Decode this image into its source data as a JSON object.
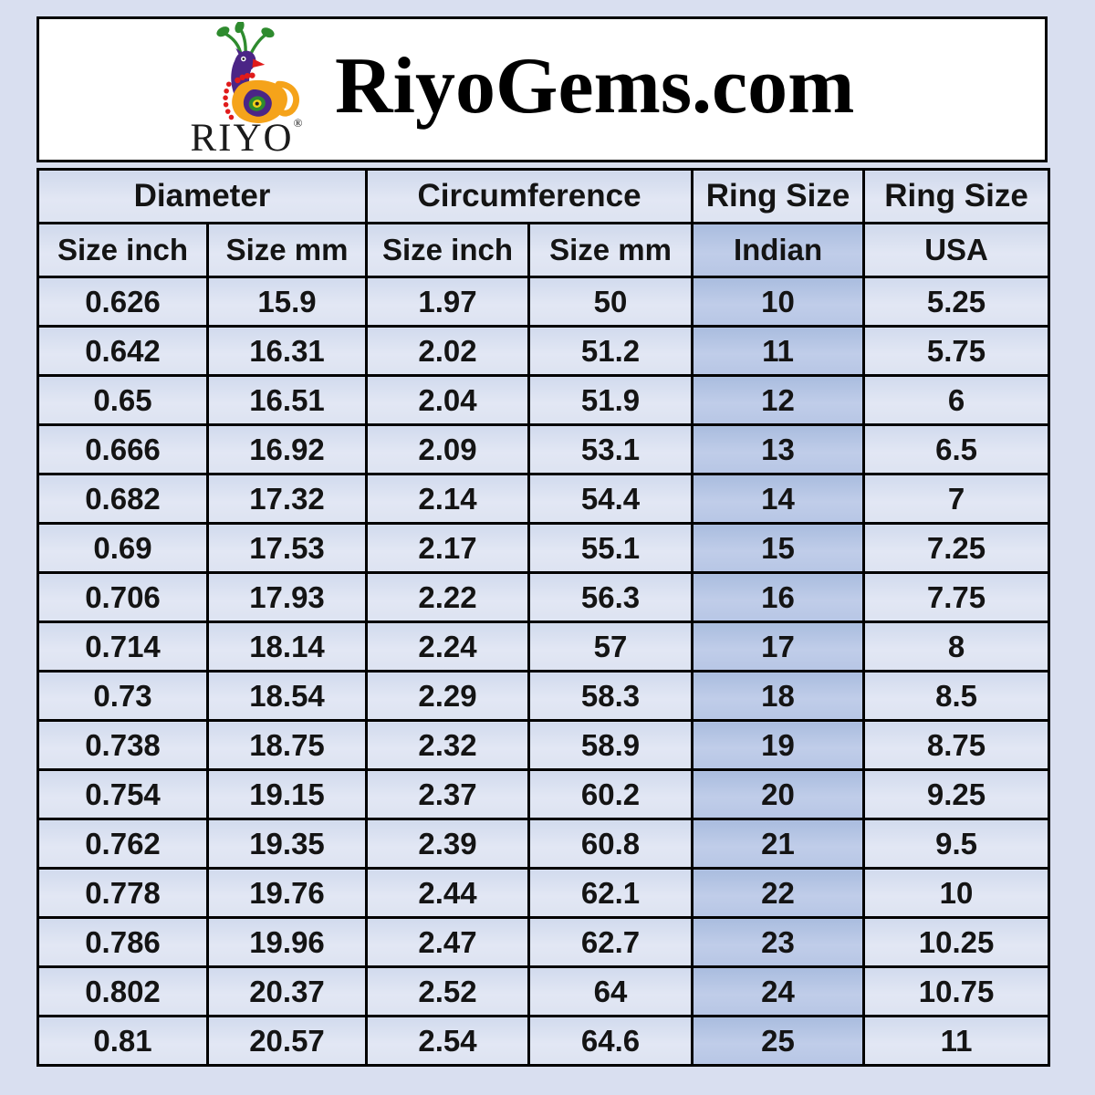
{
  "page": {
    "background_color": "#d9dff0",
    "border_color": "#000000",
    "text_color": "#141414"
  },
  "header": {
    "title": "RiyoGems.com",
    "logo": {
      "brand": "RIYO",
      "registered_mark": "®",
      "icon": "peacock-logo-icon",
      "colors": {
        "crest_green": "#2e8b2e",
        "body_purple": "#4b2586",
        "body_orange": "#f5a31a",
        "accent_red": "#e01b1b",
        "eye_yellow": "#f2d117"
      }
    }
  },
  "table": {
    "group_headers": [
      {
        "label": "Diameter",
        "colspan": 2,
        "highlight": false
      },
      {
        "label": "Circumference",
        "colspan": 2,
        "highlight": false
      },
      {
        "label": "Ring Size",
        "colspan": 1,
        "highlight": false
      },
      {
        "label": "Ring Size",
        "colspan": 1,
        "highlight": false
      }
    ],
    "sub_headers": [
      "Size inch",
      "Size mm",
      "Size inch",
      "Size mm",
      "Indian",
      "USA"
    ],
    "highlight_column_index": 4,
    "colors": {
      "cell_background": "#dde3f1",
      "highlight_background": "#b7c6e5",
      "border": "#000000"
    },
    "rows": [
      [
        "0.626",
        "15.9",
        "1.97",
        "50",
        "10",
        "5.25"
      ],
      [
        "0.642",
        "16.31",
        "2.02",
        "51.2",
        "11",
        "5.75"
      ],
      [
        "0.65",
        "16.51",
        "2.04",
        "51.9",
        "12",
        "6"
      ],
      [
        "0.666",
        "16.92",
        "2.09",
        "53.1",
        "13",
        "6.5"
      ],
      [
        "0.682",
        "17.32",
        "2.14",
        "54.4",
        "14",
        "7"
      ],
      [
        "0.69",
        "17.53",
        "2.17",
        "55.1",
        "15",
        "7.25"
      ],
      [
        "0.706",
        "17.93",
        "2.22",
        "56.3",
        "16",
        "7.75"
      ],
      [
        "0.714",
        "18.14",
        "2.24",
        "57",
        "17",
        "8"
      ],
      [
        "0.73",
        "18.54",
        "2.29",
        "58.3",
        "18",
        "8.5"
      ],
      [
        "0.738",
        "18.75",
        "2.32",
        "58.9",
        "19",
        "8.75"
      ],
      [
        "0.754",
        "19.15",
        "2.37",
        "60.2",
        "20",
        "9.25"
      ],
      [
        "0.762",
        "19.35",
        "2.39",
        "60.8",
        "21",
        "9.5"
      ],
      [
        "0.778",
        "19.76",
        "2.44",
        "62.1",
        "22",
        "10"
      ],
      [
        "0.786",
        "19.96",
        "2.47",
        "62.7",
        "23",
        "10.25"
      ],
      [
        "0.802",
        "20.37",
        "2.52",
        "64",
        "24",
        "10.75"
      ],
      [
        "0.81",
        "20.57",
        "2.54",
        "64.6",
        "25",
        "11"
      ]
    ]
  }
}
